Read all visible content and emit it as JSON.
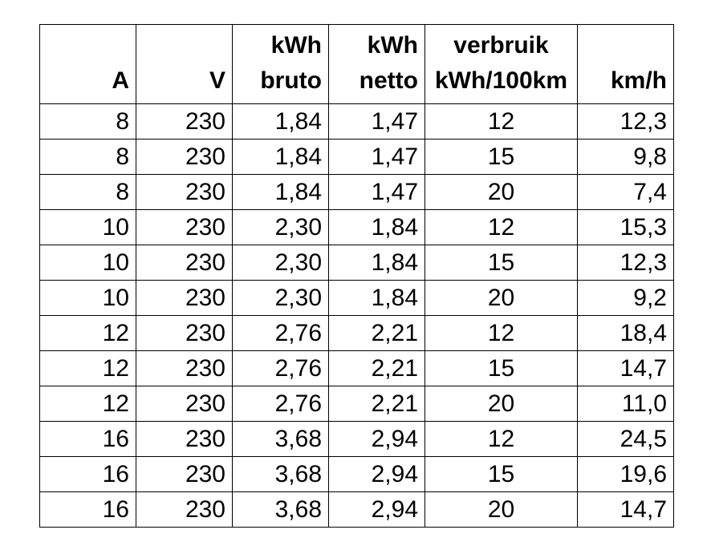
{
  "headers": [
    {
      "line1": "",
      "line2": "A"
    },
    {
      "line1": "",
      "line2": "V"
    },
    {
      "line1": "kWh",
      "line2": "bruto"
    },
    {
      "line1": "kWh",
      "line2": "netto"
    },
    {
      "line1": "verbruik",
      "line2": "kWh/100km"
    },
    {
      "line1": "",
      "line2": "km/h"
    }
  ],
  "rows": [
    [
      "8",
      "230",
      "1,84",
      "1,47",
      "12",
      "12,3"
    ],
    [
      "8",
      "230",
      "1,84",
      "1,47",
      "15",
      "9,8"
    ],
    [
      "8",
      "230",
      "1,84",
      "1,47",
      "20",
      "7,4"
    ],
    [
      "10",
      "230",
      "2,30",
      "1,84",
      "12",
      "15,3"
    ],
    [
      "10",
      "230",
      "2,30",
      "1,84",
      "15",
      "12,3"
    ],
    [
      "10",
      "230",
      "2,30",
      "1,84",
      "20",
      "9,2"
    ],
    [
      "12",
      "230",
      "2,76",
      "2,21",
      "12",
      "18,4"
    ],
    [
      "12",
      "230",
      "2,76",
      "2,21",
      "15",
      "14,7"
    ],
    [
      "12",
      "230",
      "2,76",
      "2,21",
      "20",
      "11,0"
    ],
    [
      "16",
      "230",
      "3,68",
      "2,94",
      "12",
      "24,5"
    ],
    [
      "16",
      "230",
      "3,68",
      "2,94",
      "15",
      "19,6"
    ],
    [
      "16",
      "230",
      "3,68",
      "2,94",
      "20",
      "14,7"
    ]
  ]
}
